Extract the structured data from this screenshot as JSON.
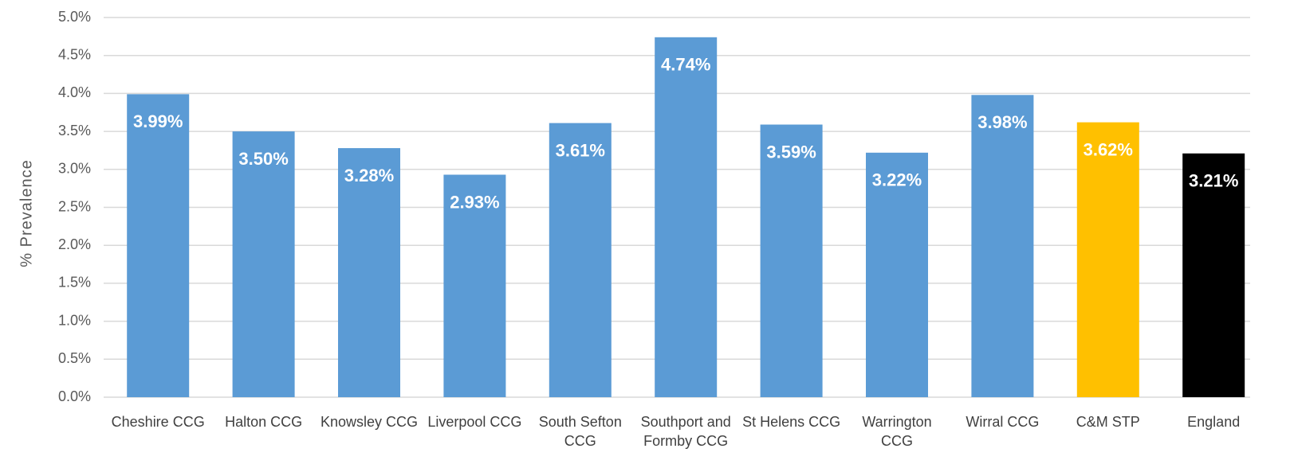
{
  "chart_data": {
    "type": "bar",
    "y_axis_label": "% Prevalence",
    "categories": [
      "Cheshire CCG",
      "Halton CCG",
      "Knowsley CCG",
      "Liverpool CCG",
      "South Sefton CCG",
      "Southport and Formby CCG",
      "St Helens CCG",
      "Warrington CCG",
      "Wirral CCG",
      "C&M STP",
      "England"
    ],
    "values": [
      3.99,
      3.5,
      3.28,
      2.93,
      3.61,
      4.74,
      3.59,
      3.22,
      3.98,
      3.62,
      3.21
    ],
    "value_labels": [
      "3.99%",
      "3.50%",
      "3.28%",
      "2.93%",
      "3.61%",
      "4.74%",
      "3.59%",
      "3.22%",
      "3.98%",
      "3.62%",
      "3.21%"
    ],
    "colors": [
      "#5b9bd5",
      "#5b9bd5",
      "#5b9bd5",
      "#5b9bd5",
      "#5b9bd5",
      "#5b9bd5",
      "#5b9bd5",
      "#5b9bd5",
      "#5b9bd5",
      "#ffc000",
      "#000000"
    ],
    "ylim": [
      0,
      5
    ],
    "yticks": [
      {
        "value": 0,
        "label": "0.0%"
      },
      {
        "value": 0.5,
        "label": "0.5%"
      },
      {
        "value": 1,
        "label": "1.0%"
      },
      {
        "value": 1.5,
        "label": "1.5%"
      },
      {
        "value": 2,
        "label": "2.0%"
      },
      {
        "value": 2.5,
        "label": "2.5%"
      },
      {
        "value": 3,
        "label": "3.0%"
      },
      {
        "value": 3.5,
        "label": "3.5%"
      },
      {
        "value": 4,
        "label": "4.0%"
      },
      {
        "value": 4.5,
        "label": "4.5%"
      },
      {
        "value": 5,
        "label": "5.0%"
      }
    ],
    "grid": true
  }
}
